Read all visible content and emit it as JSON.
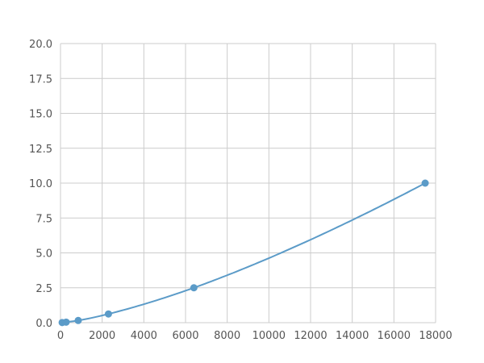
{
  "chart_data": {
    "type": "scatter",
    "title": "",
    "xlabel": "",
    "ylabel": "",
    "xlim": [
      0,
      18000
    ],
    "ylim": [
      0,
      20
    ],
    "x_ticks": [
      "0",
      "2000",
      "4000",
      "6000",
      "8000",
      "10000",
      "12000",
      "14000",
      "16000",
      "18000"
    ],
    "y_ticks": [
      "0.0",
      "2.5",
      "5.0",
      "7.5",
      "10.0",
      "12.5",
      "15.0",
      "17.5",
      "20.0"
    ],
    "grid": true,
    "series": [
      {
        "x": [
          80,
          270,
          850,
          2300,
          6400,
          17500
        ],
        "y": [
          0.01,
          0.039,
          0.156,
          0.625,
          2.5,
          10
        ],
        "color": "#5b9bc8",
        "line": "smooth fit"
      }
    ]
  }
}
